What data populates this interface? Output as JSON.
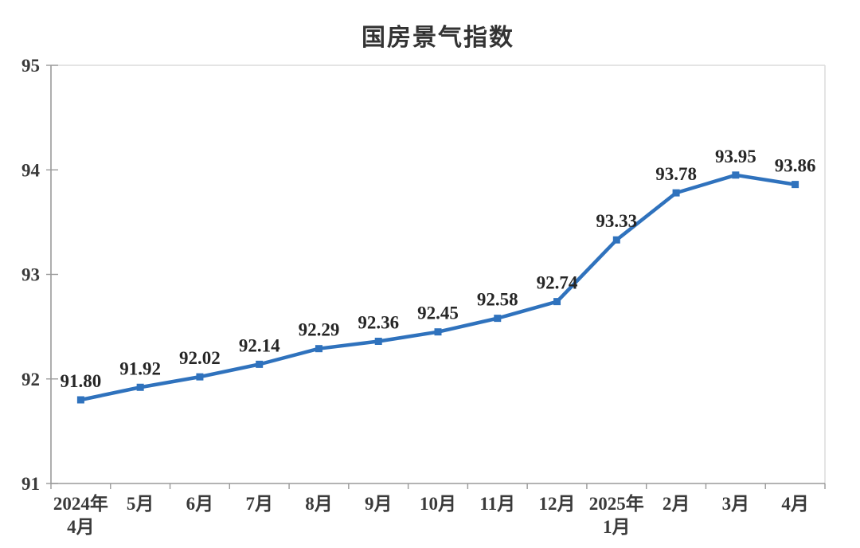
{
  "chart_data": {
    "type": "line",
    "title": "国房景气指数",
    "categories": [
      "2024年\n4月",
      "5月",
      "6月",
      "7月",
      "8月",
      "9月",
      "10月",
      "11月",
      "12月",
      "2025年\n1月",
      "2月",
      "3月",
      "4月"
    ],
    "values": [
      91.8,
      91.92,
      92.02,
      92.14,
      92.29,
      92.36,
      92.45,
      92.58,
      92.74,
      93.33,
      93.78,
      93.95,
      93.86
    ],
    "point_labels": [
      "91.80",
      "91.92",
      "92.02",
      "92.14",
      "92.29",
      "92.36",
      "92.45",
      "92.58",
      "92.74",
      "93.33",
      "93.78",
      "93.95",
      "93.86"
    ],
    "xlabel": "",
    "ylabel": "",
    "ylim": [
      91,
      95
    ],
    "yticks": [
      91,
      92,
      93,
      94,
      95
    ],
    "grid": false,
    "legend": "none",
    "colors": {
      "line": "#2F72BD",
      "marker": "#2F72BD",
      "axis": "#9a9a9a",
      "border": "#dcdcdc",
      "tick": "#9a9a9a",
      "title_text": "#333333",
      "axis_text": "#3a3a3a",
      "label_text": "#262626",
      "background": "#ffffff"
    }
  }
}
